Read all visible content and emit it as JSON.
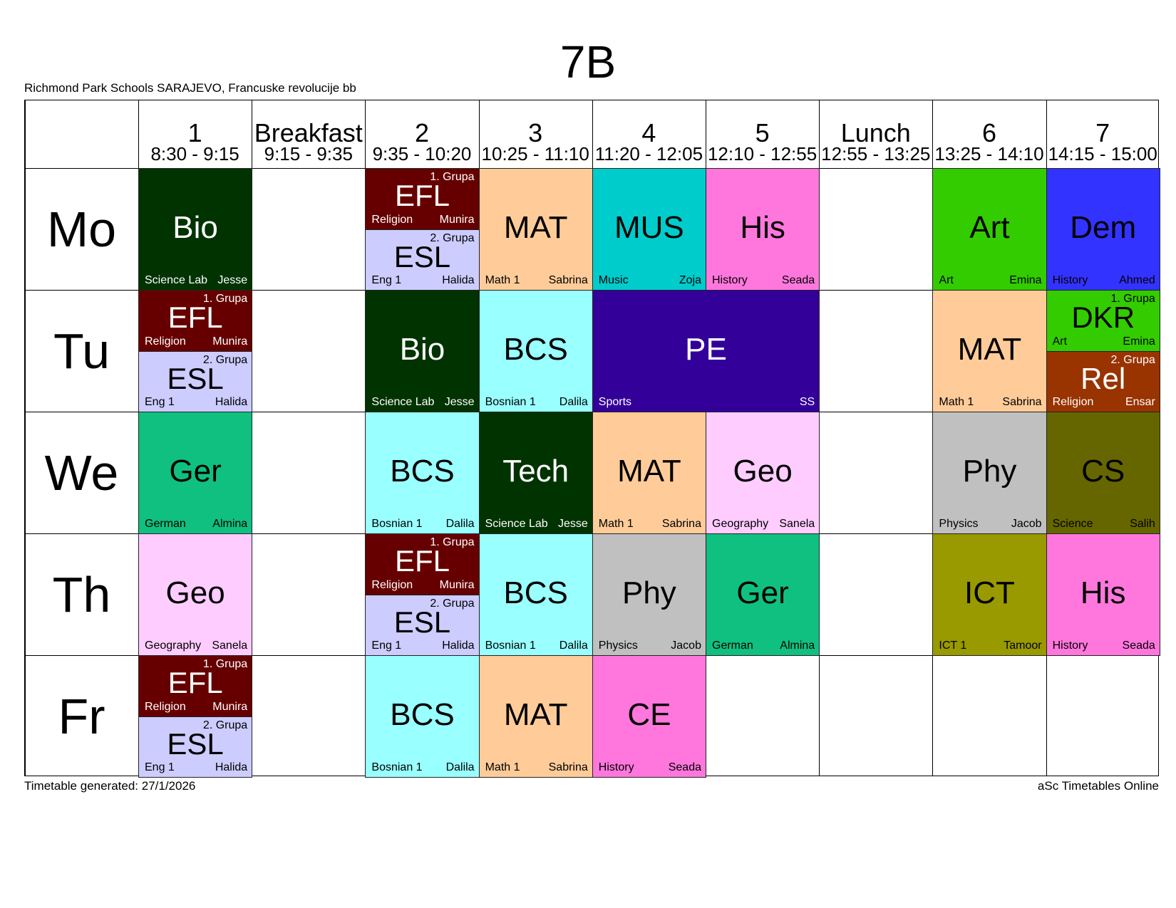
{
  "title": "7B",
  "school": "Richmond Park Schools SARAJEVO, Francuske revolucije bb",
  "footer": {
    "generated": "Timetable generated: 27/1/2026",
    "brand": "aSc Timetables Online"
  },
  "columns": [
    {
      "label": "1",
      "time": "8:30 - 9:15"
    },
    {
      "label": "Breakfast",
      "time": "9:15 - 9:35"
    },
    {
      "label": "2",
      "time": "9:35 - 10:20"
    },
    {
      "label": "3",
      "time": "10:25 - 11:10"
    },
    {
      "label": "4",
      "time": "11:20 - 12:05"
    },
    {
      "label": "5",
      "time": "12:10 - 12:55"
    },
    {
      "label": "Lunch",
      "time": "12:55 - 13:25"
    },
    {
      "label": "6",
      "time": "13:25 - 14:10"
    },
    {
      "label": "7",
      "time": "14:15 - 15:00"
    }
  ],
  "days": [
    "Mo",
    "Tu",
    "We",
    "Th",
    "Fr"
  ],
  "lessons": [
    {
      "day": 0,
      "col": 0,
      "span": 1,
      "half": "full",
      "subject": "Bio",
      "left": "Science Lab",
      "right": "Jesse",
      "group": "",
      "bg": "#003300",
      "fg": "#ffffff"
    },
    {
      "day": 0,
      "col": 2,
      "span": 1,
      "half": "top",
      "subject": "EFL",
      "left": "Religion",
      "right": "Munira",
      "group": "1. Grupa",
      "bg": "#660000",
      "fg": "#ffffff"
    },
    {
      "day": 0,
      "col": 2,
      "span": 1,
      "half": "bottom",
      "subject": "ESL",
      "left": "Eng 1",
      "right": "Halida",
      "group": "2. Grupa",
      "bg": "#ccccff",
      "fg": "#000000"
    },
    {
      "day": 0,
      "col": 3,
      "span": 1,
      "half": "full",
      "subject": "MAT",
      "left": "Math 1",
      "right": "Sabrina",
      "group": "",
      "bg": "#ffcc99",
      "fg": "#000000"
    },
    {
      "day": 0,
      "col": 4,
      "span": 1,
      "half": "full",
      "subject": "MUS",
      "left": "Music",
      "right": "Zoja",
      "group": "",
      "bg": "#00cccc",
      "fg": "#000000"
    },
    {
      "day": 0,
      "col": 5,
      "span": 1,
      "half": "full",
      "subject": "His",
      "left": "History",
      "right": "Seada",
      "group": "",
      "bg": "#ff77dd",
      "fg": "#000000"
    },
    {
      "day": 0,
      "col": 7,
      "span": 1,
      "half": "full",
      "subject": "Art",
      "left": "Art",
      "right": "Emina",
      "group": "",
      "bg": "#33cc00",
      "fg": "#000000"
    },
    {
      "day": 0,
      "col": 8,
      "span": 1,
      "half": "full",
      "subject": "Dem",
      "left": "History",
      "right": "Ahmed",
      "group": "",
      "bg": "#3333ff",
      "fg": "#000000"
    },
    {
      "day": 1,
      "col": 0,
      "span": 1,
      "half": "top",
      "subject": "EFL",
      "left": "Religion",
      "right": "Munira",
      "group": "1. Grupa",
      "bg": "#660000",
      "fg": "#ffffff"
    },
    {
      "day": 1,
      "col": 0,
      "span": 1,
      "half": "bottom",
      "subject": "ESL",
      "left": "Eng 1",
      "right": "Halida",
      "group": "2. Grupa",
      "bg": "#ccccff",
      "fg": "#000000"
    },
    {
      "day": 1,
      "col": 2,
      "span": 1,
      "half": "full",
      "subject": "Bio",
      "left": "Science Lab",
      "right": "Jesse",
      "group": "",
      "bg": "#003300",
      "fg": "#ffffff"
    },
    {
      "day": 1,
      "col": 3,
      "span": 1,
      "half": "full",
      "subject": "BCS",
      "left": "Bosnian 1",
      "right": "Dalila",
      "group": "",
      "bg": "#99ffff",
      "fg": "#000000"
    },
    {
      "day": 1,
      "col": 4,
      "span": 2,
      "half": "full",
      "subject": "PE",
      "left": "Sports",
      "right": "SS",
      "group": "",
      "bg": "#330099",
      "fg": "#ffffff"
    },
    {
      "day": 1,
      "col": 7,
      "span": 1,
      "half": "full",
      "subject": "MAT",
      "left": "Math 1",
      "right": "Sabrina",
      "group": "",
      "bg": "#ffcc99",
      "fg": "#000000"
    },
    {
      "day": 1,
      "col": 8,
      "span": 1,
      "half": "top",
      "subject": "DKR",
      "left": "Art",
      "right": "Emina",
      "group": "1. Grupa",
      "bg": "#33cc00",
      "fg": "#000000"
    },
    {
      "day": 1,
      "col": 8,
      "span": 1,
      "half": "bottom",
      "subject": "Rel",
      "left": "Religion",
      "right": "Ensar",
      "group": "2. Grupa",
      "bg": "#993300",
      "fg": "#ffffff"
    },
    {
      "day": 2,
      "col": 0,
      "span": 1,
      "half": "full",
      "subject": "Ger",
      "left": "German",
      "right": "Almina",
      "group": "",
      "bg": "#10c080",
      "fg": "#000000"
    },
    {
      "day": 2,
      "col": 2,
      "span": 1,
      "half": "full",
      "subject": "BCS",
      "left": "Bosnian 1",
      "right": "Dalila",
      "group": "",
      "bg": "#99ffff",
      "fg": "#000000"
    },
    {
      "day": 2,
      "col": 3,
      "span": 1,
      "half": "full",
      "subject": "Tech",
      "left": "Science Lab",
      "right": "Jesse",
      "group": "",
      "bg": "#003300",
      "fg": "#ffffff"
    },
    {
      "day": 2,
      "col": 4,
      "span": 1,
      "half": "full",
      "subject": "MAT",
      "left": "Math 1",
      "right": "Sabrina",
      "group": "",
      "bg": "#ffcc99",
      "fg": "#000000"
    },
    {
      "day": 2,
      "col": 5,
      "span": 1,
      "half": "full",
      "subject": "Geo",
      "left": "Geography",
      "right": "Sanela",
      "group": "",
      "bg": "#ffccff",
      "fg": "#000000"
    },
    {
      "day": 2,
      "col": 7,
      "span": 1,
      "half": "full",
      "subject": "Phy",
      "left": "Physics",
      "right": "Jacob",
      "group": "",
      "bg": "#c0c0c0",
      "fg": "#000000"
    },
    {
      "day": 2,
      "col": 8,
      "span": 1,
      "half": "full",
      "subject": "CS",
      "left": "Science",
      "right": "Salih",
      "group": "",
      "bg": "#666600",
      "fg": "#000000"
    },
    {
      "day": 3,
      "col": 0,
      "span": 1,
      "half": "full",
      "subject": "Geo",
      "left": "Geography",
      "right": "Sanela",
      "group": "",
      "bg": "#ffccff",
      "fg": "#000000"
    },
    {
      "day": 3,
      "col": 2,
      "span": 1,
      "half": "top",
      "subject": "EFL",
      "left": "Religion",
      "right": "Munira",
      "group": "1. Grupa",
      "bg": "#660000",
      "fg": "#ffffff"
    },
    {
      "day": 3,
      "col": 2,
      "span": 1,
      "half": "bottom",
      "subject": "ESL",
      "left": "Eng 1",
      "right": "Halida",
      "group": "2. Grupa",
      "bg": "#ccccff",
      "fg": "#000000"
    },
    {
      "day": 3,
      "col": 3,
      "span": 1,
      "half": "full",
      "subject": "BCS",
      "left": "Bosnian 1",
      "right": "Dalila",
      "group": "",
      "bg": "#99ffff",
      "fg": "#000000"
    },
    {
      "day": 3,
      "col": 4,
      "span": 1,
      "half": "full",
      "subject": "Phy",
      "left": "Physics",
      "right": "Jacob",
      "group": "",
      "bg": "#c0c0c0",
      "fg": "#000000"
    },
    {
      "day": 3,
      "col": 5,
      "span": 1,
      "half": "full",
      "subject": "Ger",
      "left": "German",
      "right": "Almina",
      "group": "",
      "bg": "#10c080",
      "fg": "#000000"
    },
    {
      "day": 3,
      "col": 7,
      "span": 1,
      "half": "full",
      "subject": "ICT",
      "left": "ICT 1",
      "right": "Tamoor",
      "group": "",
      "bg": "#999900",
      "fg": "#000000"
    },
    {
      "day": 3,
      "col": 8,
      "span": 1,
      "half": "full",
      "subject": "His",
      "left": "History",
      "right": "Seada",
      "group": "",
      "bg": "#ff77dd",
      "fg": "#000000"
    },
    {
      "day": 4,
      "col": 0,
      "span": 1,
      "half": "top",
      "subject": "EFL",
      "left": "Religion",
      "right": "Munira",
      "group": "1. Grupa",
      "bg": "#660000",
      "fg": "#ffffff"
    },
    {
      "day": 4,
      "col": 0,
      "span": 1,
      "half": "bottom",
      "subject": "ESL",
      "left": "Eng 1",
      "right": "Halida",
      "group": "2. Grupa",
      "bg": "#ccccff",
      "fg": "#000000"
    },
    {
      "day": 4,
      "col": 2,
      "span": 1,
      "half": "full",
      "subject": "BCS",
      "left": "Bosnian 1",
      "right": "Dalila",
      "group": "",
      "bg": "#99ffff",
      "fg": "#000000"
    },
    {
      "day": 4,
      "col": 3,
      "span": 1,
      "half": "full",
      "subject": "MAT",
      "left": "Math 1",
      "right": "Sabrina",
      "group": "",
      "bg": "#ffcc99",
      "fg": "#000000"
    },
    {
      "day": 4,
      "col": 4,
      "span": 1,
      "half": "full",
      "subject": "CE",
      "left": "History",
      "right": "Seada",
      "group": "",
      "bg": "#ff77dd",
      "fg": "#000000"
    }
  ]
}
